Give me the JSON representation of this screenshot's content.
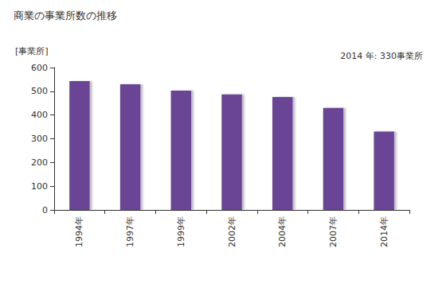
{
  "chart_data": {
    "type": "bar",
    "title": "商業の事業所数の推移",
    "ylabel": "[事業所]",
    "annotations": [
      "2014 年: 330事業所"
    ],
    "categories": [
      "1994年",
      "1997年",
      "1999年",
      "2002年",
      "2004年",
      "2007年",
      "2014年"
    ],
    "values": [
      543,
      530,
      503,
      487,
      476,
      430,
      330
    ],
    "color": "#6b4596",
    "ylim": [
      0,
      600
    ],
    "yticks": [
      0,
      100,
      200,
      300,
      400,
      500,
      600
    ],
    "grid": false
  }
}
